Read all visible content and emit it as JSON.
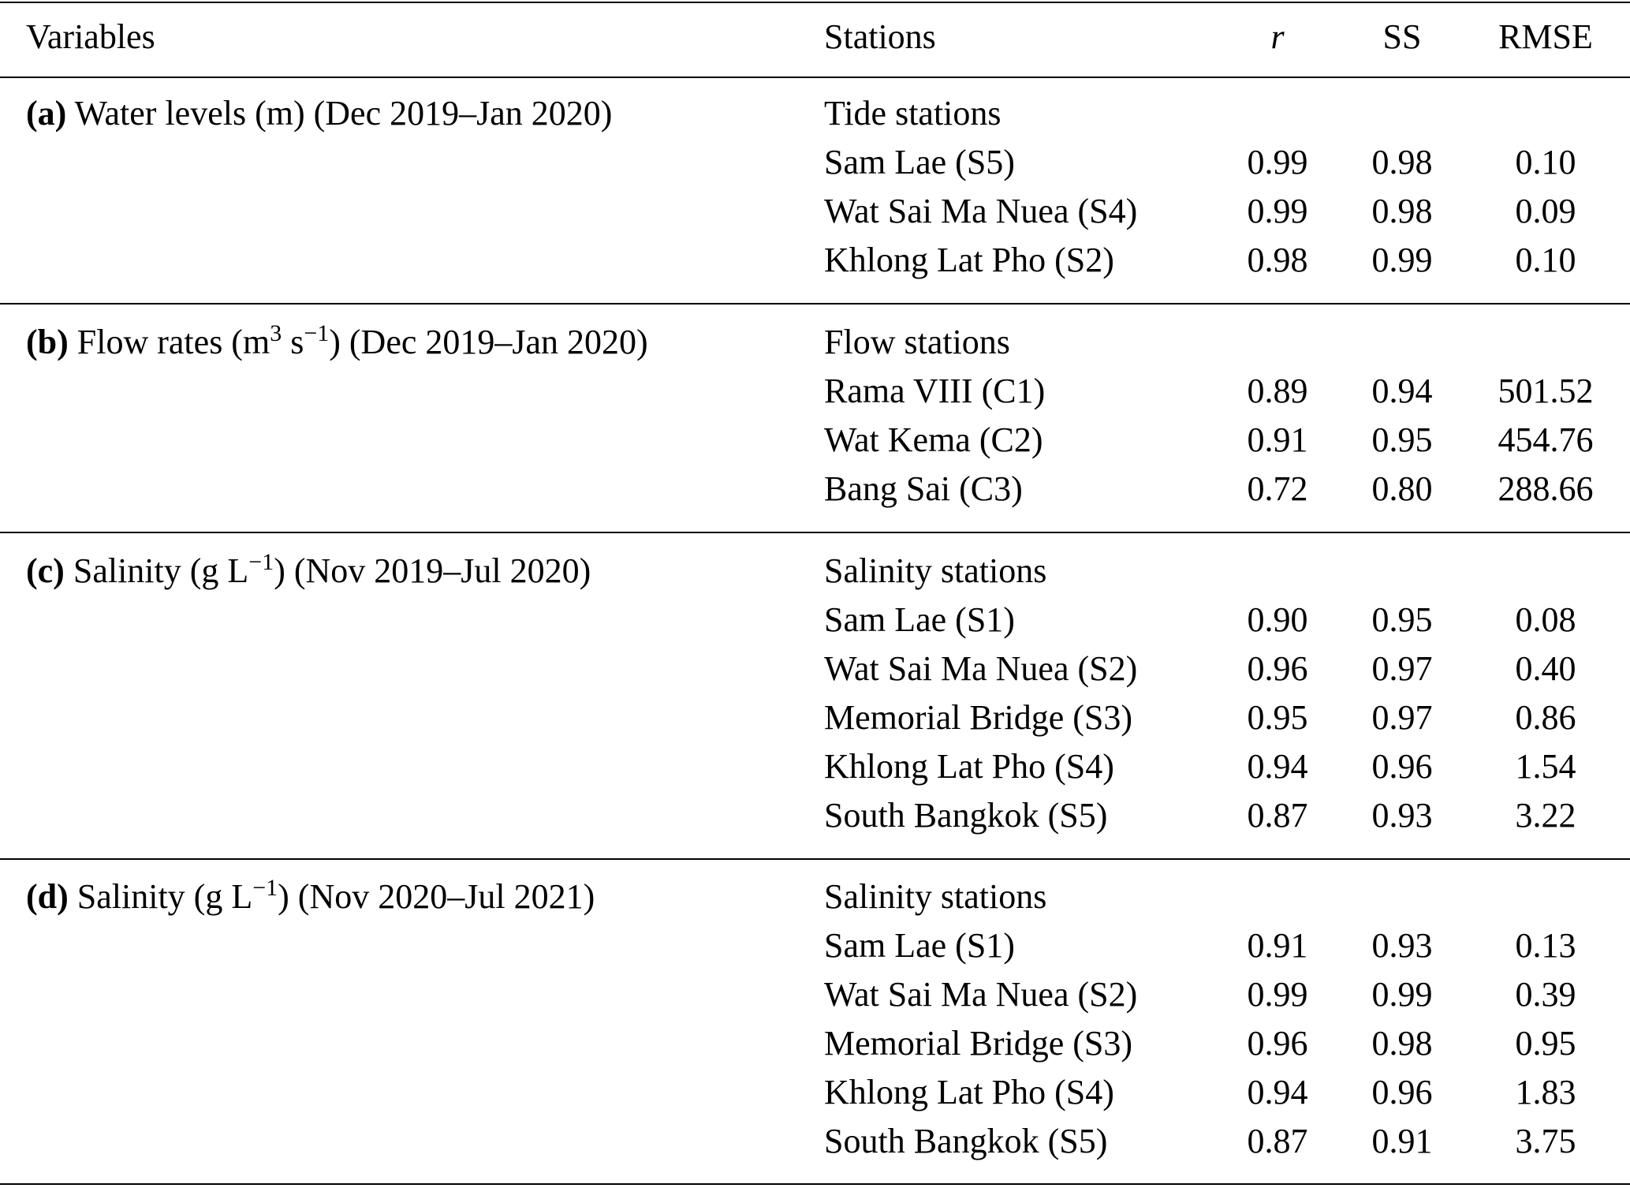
{
  "header": {
    "variables": "Variables",
    "stations": "Stations",
    "r": "r",
    "ss": "SS",
    "rmse": "RMSE"
  },
  "sections": [
    {
      "letter": "(a)",
      "var_before": " Water levels (m) (Dec 2019–Jan 2020)",
      "sup1": "",
      "var_mid": "",
      "sup2": "",
      "var_after": "",
      "group": "Tide stations",
      "rows": [
        {
          "station": "Sam Lae (S5)",
          "r": "0.99",
          "ss": "0.98",
          "rmse": "0.10"
        },
        {
          "station": "Wat Sai Ma Nuea (S4)",
          "r": "0.99",
          "ss": "0.98",
          "rmse": "0.09"
        },
        {
          "station": "Khlong Lat Pho (S2)",
          "r": "0.98",
          "ss": "0.99",
          "rmse": "0.10"
        }
      ]
    },
    {
      "letter": "(b)",
      "var_before": " Flow rates (m",
      "sup1": "3",
      "var_mid": " s",
      "sup2": "−1",
      "var_after": ") (Dec 2019–Jan 2020)",
      "group": "Flow stations",
      "rows": [
        {
          "station": "Rama VIII (C1)",
          "r": "0.89",
          "ss": "0.94",
          "rmse": "501.52"
        },
        {
          "station": "Wat Kema (C2)",
          "r": "0.91",
          "ss": "0.95",
          "rmse": "454.76"
        },
        {
          "station": "Bang Sai (C3)",
          "r": "0.72",
          "ss": "0.80",
          "rmse": "288.66"
        }
      ]
    },
    {
      "letter": "(c)",
      "var_before": " Salinity (g L",
      "sup1": "",
      "var_mid": "",
      "sup2": "−1",
      "var_after": ") (Nov 2019–Jul 2020)",
      "group": "Salinity stations",
      "rows": [
        {
          "station": "Sam Lae (S1)",
          "r": "0.90",
          "ss": "0.95",
          "rmse": "0.08"
        },
        {
          "station": "Wat Sai Ma Nuea (S2)",
          "r": "0.96",
          "ss": "0.97",
          "rmse": "0.40"
        },
        {
          "station": "Memorial Bridge (S3)",
          "r": "0.95",
          "ss": "0.97",
          "rmse": "0.86"
        },
        {
          "station": "Khlong Lat Pho (S4)",
          "r": "0.94",
          "ss": "0.96",
          "rmse": "1.54"
        },
        {
          "station": "South Bangkok (S5)",
          "r": "0.87",
          "ss": "0.93",
          "rmse": "3.22"
        }
      ]
    },
    {
      "letter": "(d)",
      "var_before": " Salinity (g L",
      "sup1": "",
      "var_mid": "",
      "sup2": "−1",
      "var_after": ") (Nov 2020–Jul 2021)",
      "group": "Salinity stations",
      "rows": [
        {
          "station": "Sam Lae (S1)",
          "r": "0.91",
          "ss": "0.93",
          "rmse": "0.13"
        },
        {
          "station": "Wat Sai Ma Nuea (S2)",
          "r": "0.99",
          "ss": "0.99",
          "rmse": "0.39"
        },
        {
          "station": "Memorial Bridge (S3)",
          "r": "0.96",
          "ss": "0.98",
          "rmse": "0.95"
        },
        {
          "station": "Khlong Lat Pho (S4)",
          "r": "0.94",
          "ss": "0.96",
          "rmse": "1.83"
        },
        {
          "station": "South Bangkok (S5)",
          "r": "0.87",
          "ss": "0.91",
          "rmse": "3.75"
        }
      ]
    }
  ]
}
